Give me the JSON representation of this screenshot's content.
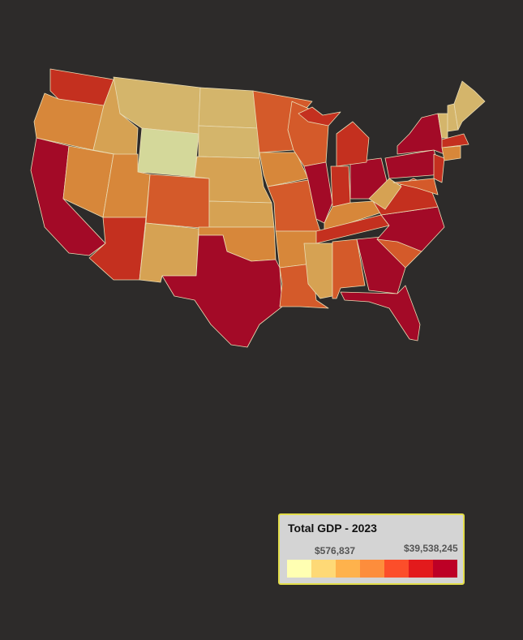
{
  "legend": {
    "title": "Total GDP - 2023",
    "min": {
      "value": 576837,
      "label": "$576,837"
    },
    "max": {
      "value": 39538245,
      "label": "$39,538,245"
    },
    "colors": [
      "#ffffb2",
      "#fed976",
      "#feb24c",
      "#fd8d3c",
      "#fc4e2a",
      "#e31a1c",
      "#bd0026"
    ]
  }
}
